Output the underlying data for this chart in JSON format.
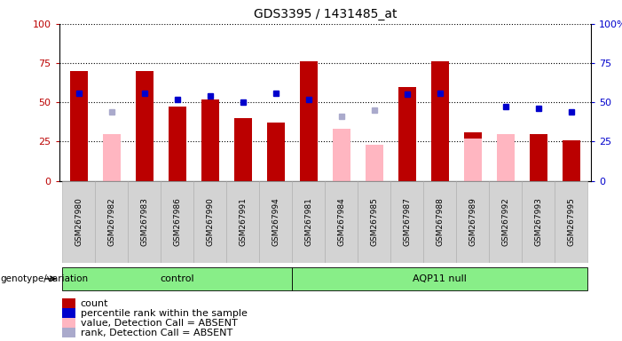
{
  "title": "GDS3395 / 1431485_at",
  "samples": [
    "GSM267980",
    "GSM267982",
    "GSM267983",
    "GSM267986",
    "GSM267990",
    "GSM267991",
    "GSM267994",
    "GSM267981",
    "GSM267984",
    "GSM267985",
    "GSM267987",
    "GSM267988",
    "GSM267989",
    "GSM267992",
    "GSM267993",
    "GSM267995"
  ],
  "n_control": 7,
  "n_aqp11": 9,
  "count": [
    70,
    null,
    70,
    47,
    52,
    40,
    37,
    76,
    null,
    null,
    60,
    76,
    31,
    null,
    30,
    26
  ],
  "percentile_rank": [
    56,
    null,
    56,
    52,
    54,
    50,
    56,
    52,
    null,
    null,
    55,
    56,
    null,
    47,
    46,
    44
  ],
  "value_absent": [
    null,
    30,
    null,
    null,
    null,
    null,
    null,
    null,
    33,
    23,
    null,
    null,
    27,
    30,
    null,
    null
  ],
  "rank_absent": [
    null,
    44,
    null,
    null,
    null,
    null,
    null,
    null,
    41,
    45,
    null,
    null,
    null,
    null,
    null,
    null
  ],
  "bar_color_red": "#BB0000",
  "bar_color_pink": "#FFB6C1",
  "dot_color_blue": "#0000CC",
  "dot_color_lightblue": "#AAAACC",
  "group_color": "#88EE88",
  "legend_items": [
    {
      "label": "count",
      "color": "#BB0000"
    },
    {
      "label": "percentile rank within the sample",
      "color": "#0000CC"
    },
    {
      "label": "value, Detection Call = ABSENT",
      "color": "#FFB6C1"
    },
    {
      "label": "rank, Detection Call = ABSENT",
      "color": "#AAAACC"
    }
  ]
}
